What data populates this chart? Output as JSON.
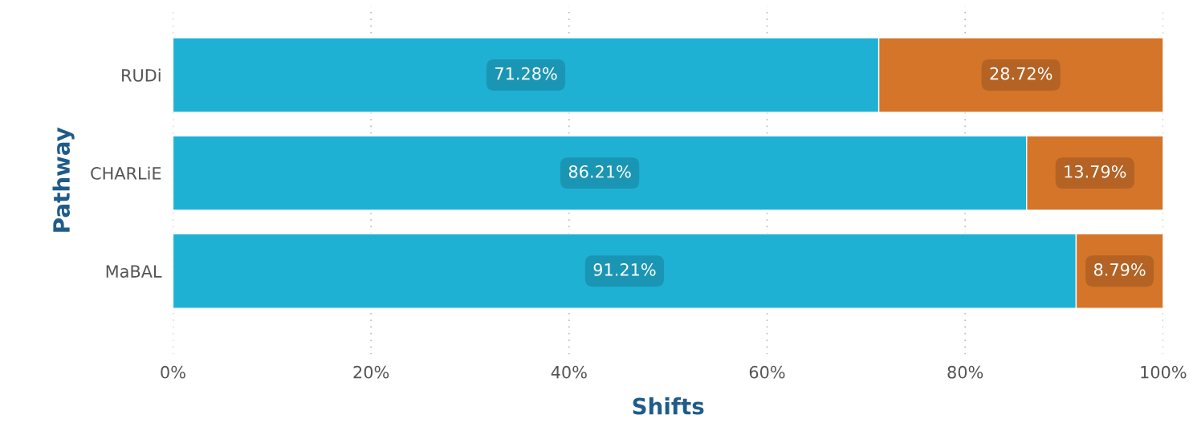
{
  "chart_data": {
    "type": "bar",
    "orientation": "horizontal",
    "stacked": true,
    "xlabel": "Shifts",
    "ylabel": "Pathway",
    "categories": [
      "RUDi",
      "CHARLiE",
      "MaBAL"
    ],
    "series": [
      {
        "color": "#1fb1d4",
        "values": [
          71.28,
          86.21,
          91.21
        ],
        "value_labels": [
          "71.28%",
          "86.21%",
          "91.21%"
        ]
      },
      {
        "color": "#d4752a",
        "values": [
          28.72,
          13.79,
          8.79
        ],
        "value_labels": [
          "28.72%",
          "13.79%",
          "8.79%"
        ]
      }
    ],
    "xlim": [
      0,
      100
    ],
    "xticks": [
      {
        "value": 0,
        "label": "0%"
      },
      {
        "value": 20,
        "label": "20%"
      },
      {
        "value": 40,
        "label": "40%"
      },
      {
        "value": 60,
        "label": "60%"
      },
      {
        "value": 80,
        "label": "80%"
      },
      {
        "value": 100,
        "label": "100%"
      }
    ],
    "grid": "x",
    "legend": false
  }
}
